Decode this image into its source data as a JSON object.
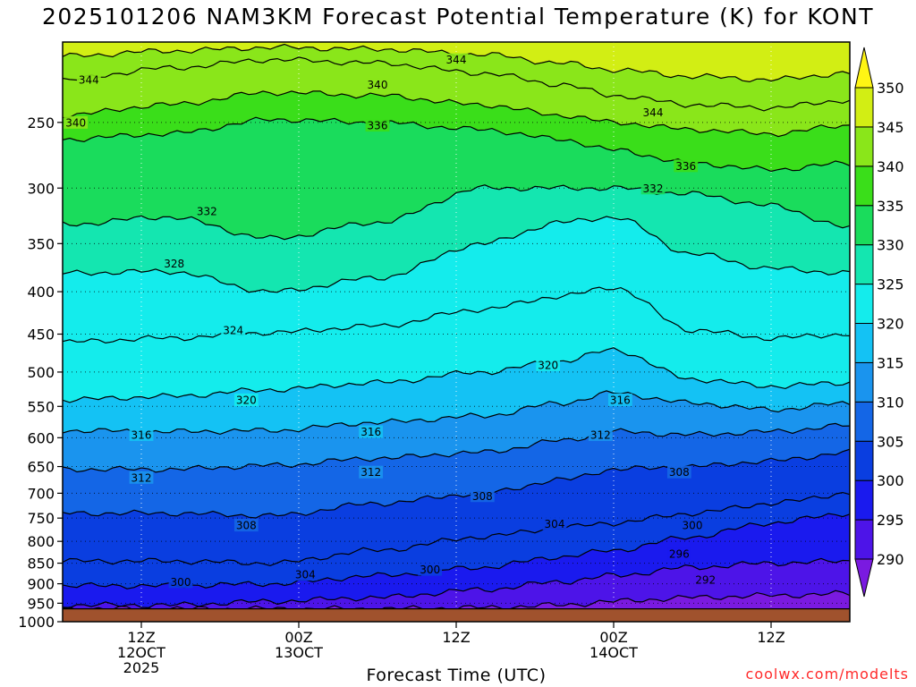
{
  "chart_data": {
    "type": "heatmap",
    "title": "2025101206 NAM3KM Forecast Potential Temperature (K) for KONT",
    "xlabel": "Forecast Time (UTC)",
    "ylabel": "",
    "y_axis_scale": "log",
    "y_axis_reversed": true,
    "y_range_hpa": [
      1000,
      200
    ],
    "y_ticks": [
      250,
      300,
      350,
      400,
      450,
      500,
      550,
      600,
      650,
      700,
      750,
      800,
      850,
      900,
      950,
      1000
    ],
    "x_range_hours": [
      6,
      66
    ],
    "x_ticks": [
      {
        "hour": 12,
        "lines": [
          "12Z",
          "12OCT",
          "2025"
        ]
      },
      {
        "hour": 24,
        "lines": [
          "00Z",
          "13OCT"
        ]
      },
      {
        "hour": 36,
        "lines": [
          "12Z"
        ]
      },
      {
        "hour": 48,
        "lines": [
          "00Z",
          "14OCT"
        ]
      },
      {
        "hour": 60,
        "lines": [
          "12Z"
        ]
      }
    ],
    "colorbar": {
      "label_levels": [
        290,
        295,
        300,
        305,
        310,
        315,
        320,
        325,
        330,
        335,
        340,
        345,
        350
      ],
      "bins": [
        {
          "range": [
            285,
            290
          ],
          "color": "#7a1ae0"
        },
        {
          "range": [
            290,
            295
          ],
          "color": "#4d14e8"
        },
        {
          "range": [
            295,
            300
          ],
          "color": "#1a1aee"
        },
        {
          "range": [
            300,
            305
          ],
          "color": "#0a3ee0"
        },
        {
          "range": [
            305,
            310
          ],
          "color": "#1466e6"
        },
        {
          "range": [
            310,
            315
          ],
          "color": "#1a94ee"
        },
        {
          "range": [
            315,
            320
          ],
          "color": "#14c2f4"
        },
        {
          "range": [
            320,
            325
          ],
          "color": "#14ecec"
        },
        {
          "range": [
            325,
            330
          ],
          "color": "#14e6b0"
        },
        {
          "range": [
            330,
            335
          ],
          "color": "#1adc5c"
        },
        {
          "range": [
            335,
            340
          ],
          "color": "#3ade1a"
        },
        {
          "range": [
            340,
            345
          ],
          "color": "#8ae61a"
        },
        {
          "range": [
            345,
            350
          ],
          "color": "#d2ee14"
        },
        {
          "range": [
            350,
            355
          ],
          "color": "#fff514"
        }
      ]
    },
    "ground_color": "#a0522d",
    "ground_below_hpa": 965,
    "contour_interval_k": 2,
    "series": [
      {
        "theta": 292,
        "hours": [
          6,
          14,
          22,
          30,
          38,
          44,
          48,
          54,
          60,
          66
        ],
        "p": [
          965,
          965,
          965,
          965,
          962,
          955,
          945,
          935,
          930,
          925
        ]
      },
      {
        "theta": 296,
        "hours": [
          6,
          14,
          22,
          30,
          38,
          44,
          48,
          54,
          60,
          66
        ],
        "p": [
          955,
          955,
          945,
          935,
          915,
          895,
          880,
          860,
          850,
          845
        ]
      },
      {
        "theta": 300,
        "hours": [
          6,
          14,
          22,
          30,
          38,
          44,
          48,
          54,
          60,
          66
        ],
        "p": [
          905,
          905,
          900,
          880,
          860,
          835,
          820,
          790,
          760,
          740
        ]
      },
      {
        "theta": 304,
        "hours": [
          6,
          14,
          22,
          30,
          38,
          44,
          48,
          54,
          60,
          66
        ],
        "p": [
          845,
          845,
          850,
          820,
          790,
          770,
          760,
          740,
          720,
          700
        ]
      },
      {
        "theta": 308,
        "hours": [
          6,
          14,
          22,
          30,
          38,
          44,
          48,
          54,
          60,
          66
        ],
        "p": [
          740,
          740,
          745,
          720,
          700,
          675,
          655,
          650,
          640,
          625
        ]
      },
      {
        "theta": 312,
        "hours": [
          6,
          14,
          22,
          30,
          38,
          44,
          48,
          54,
          60,
          66
        ],
        "p": [
          655,
          655,
          648,
          635,
          625,
          605,
          590,
          595,
          590,
          580
        ]
      },
      {
        "theta": 316,
        "hours": [
          6,
          14,
          22,
          30,
          38,
          44,
          48,
          54,
          60,
          66
        ],
        "p": [
          588,
          590,
          588,
          575,
          565,
          545,
          530,
          545,
          555,
          545
        ]
      },
      {
        "theta": 320,
        "hours": [
          6,
          14,
          22,
          30,
          38,
          44,
          48,
          54,
          60,
          66
        ],
        "p": [
          540,
          535,
          525,
          515,
          500,
          485,
          470,
          510,
          520,
          515
        ]
      },
      {
        "theta": 324,
        "hours": [
          6,
          14,
          22,
          30,
          38,
          44,
          48,
          54,
          60,
          66
        ],
        "p": [
          460,
          455,
          448,
          440,
          420,
          405,
          395,
          445,
          455,
          450
        ]
      },
      {
        "theta": 328,
        "hours": [
          6,
          14,
          22,
          30,
          38,
          44,
          48,
          54,
          60,
          66
        ],
        "p": [
          380,
          378,
          400,
          385,
          350,
          330,
          325,
          360,
          375,
          380
        ]
      },
      {
        "theta": 332,
        "hours": [
          6,
          14,
          22,
          30,
          38,
          44,
          48,
          54,
          60,
          66
        ],
        "p": [
          332,
          325,
          345,
          330,
          300,
          300,
          300,
          305,
          315,
          335
        ]
      },
      {
        "theta": 336,
        "hours": [
          6,
          14,
          22,
          30,
          38,
          44,
          48,
          54,
          60,
          66
        ],
        "p": [
          262,
          258,
          248,
          250,
          255,
          262,
          270,
          280,
          285,
          280
        ]
      },
      {
        "theta": 340,
        "hours": [
          6,
          14,
          22,
          30,
          38,
          44,
          48,
          54,
          60,
          66
        ],
        "p": [
          245,
          238,
          230,
          232,
          238,
          245,
          250,
          255,
          258,
          252
        ]
      },
      {
        "theta": 344,
        "hours": [
          6,
          14,
          22,
          30,
          38,
          44,
          48,
          54,
          60,
          66
        ],
        "p": [
          222,
          215,
          210,
          212,
          218,
          225,
          232,
          238,
          240,
          235
        ]
      },
      {
        "theta": 348,
        "hours": [
          6,
          14,
          22,
          30,
          38,
          44,
          48,
          54,
          60,
          66
        ],
        "p": [
          208,
          205,
          203,
          204,
          207,
          212,
          216,
          220,
          222,
          218
        ]
      }
    ],
    "contour_labels": [
      {
        "text": "344",
        "hour": 36,
        "p": 210
      },
      {
        "text": "344",
        "hour": 8,
        "p": 222
      },
      {
        "text": "340",
        "hour": 30,
        "p": 225
      },
      {
        "text": "340",
        "hour": 7,
        "p": 250
      },
      {
        "text": "336",
        "hour": 30,
        "p": 252
      },
      {
        "text": "344",
        "hour": 51,
        "p": 243
      },
      {
        "text": "336",
        "hour": 53.5,
        "p": 282
      },
      {
        "text": "332",
        "hour": 51,
        "p": 300
      },
      {
        "text": "332",
        "hour": 17,
        "p": 320
      },
      {
        "text": "328",
        "hour": 14.5,
        "p": 370
      },
      {
        "text": "324",
        "hour": 19,
        "p": 445
      },
      {
        "text": "320",
        "hour": 43,
        "p": 490
      },
      {
        "text": "320",
        "hour": 20,
        "p": 540
      },
      {
        "text": "316",
        "hour": 48.5,
        "p": 540
      },
      {
        "text": "316",
        "hour": 29.5,
        "p": 590
      },
      {
        "text": "316",
        "hour": 12,
        "p": 595
      },
      {
        "text": "312",
        "hour": 47,
        "p": 595
      },
      {
        "text": "312",
        "hour": 29.5,
        "p": 660
      },
      {
        "text": "312",
        "hour": 12,
        "p": 670
      },
      {
        "text": "308",
        "hour": 53,
        "p": 660
      },
      {
        "text": "308",
        "hour": 38,
        "p": 705
      },
      {
        "text": "304",
        "hour": 43.5,
        "p": 762
      },
      {
        "text": "308",
        "hour": 20,
        "p": 765
      },
      {
        "text": "300",
        "hour": 54,
        "p": 765
      },
      {
        "text": "296",
        "hour": 53,
        "p": 828
      },
      {
        "text": "300",
        "hour": 34,
        "p": 865
      },
      {
        "text": "304",
        "hour": 24.5,
        "p": 877
      },
      {
        "text": "292",
        "hour": 55,
        "p": 890
      },
      {
        "text": "300",
        "hour": 15,
        "p": 895
      }
    ],
    "grid": true,
    "legend": "colorbar-right",
    "credit": "coolwx.com/modelts"
  }
}
